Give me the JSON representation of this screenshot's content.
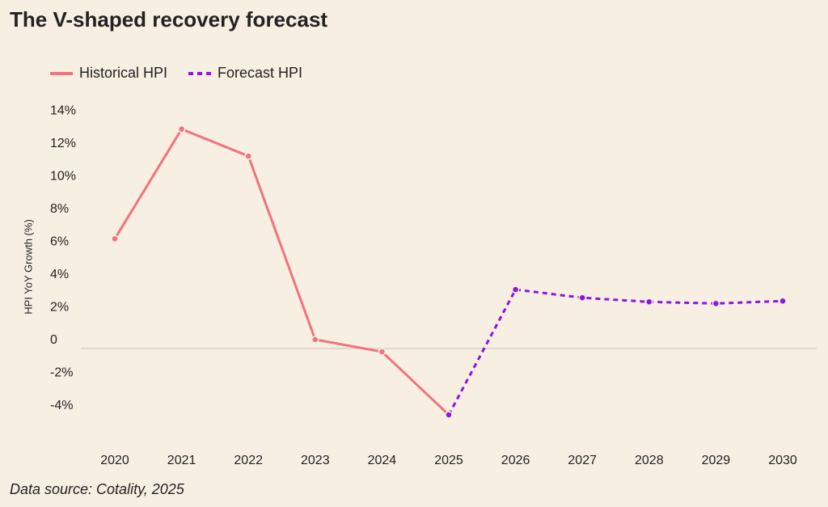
{
  "chart_data": {
    "type": "line",
    "title": "The V-shaped recovery forecast",
    "y_label": "HPI YoY Growth (%)",
    "source": "Data source: Cotality, 2025",
    "categories": [
      "2020",
      "2021",
      "2022",
      "2023",
      "2024",
      "2025",
      "2026",
      "2027",
      "2028",
      "2029",
      "2030"
    ],
    "series": [
      {
        "name": "Historical HPI",
        "color": "#f2727f",
        "style": "solid",
        "values": [
          6.7,
          13.4,
          11.75,
          0.55,
          -0.2,
          -4.05,
          null,
          null,
          null,
          null,
          null
        ]
      },
      {
        "name": "Forecast HPI",
        "color": "#8a17e3",
        "style": "dashed",
        "values": [
          null,
          null,
          null,
          null,
          null,
          -4.05,
          3.6,
          3.1,
          2.85,
          2.75,
          2.9
        ]
      }
    ],
    "ylim": [
      -6,
      16
    ],
    "yticks": [
      {
        "value": -4,
        "label": "-4%"
      },
      {
        "value": -2,
        "label": "-2%"
      },
      0,
      {
        "value": 2,
        "label": "2%"
      },
      {
        "value": 4,
        "label": "4%"
      },
      {
        "value": 6,
        "label": "6%"
      },
      {
        "value": 8,
        "label": "8%"
      },
      {
        "value": 10,
        "label": "10%"
      },
      {
        "value": 12,
        "label": "12%"
      },
      {
        "value": 14,
        "label": "14%"
      }
    ],
    "zero_line": true
  }
}
